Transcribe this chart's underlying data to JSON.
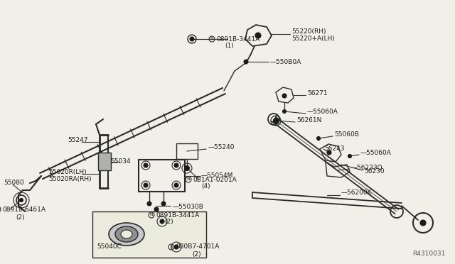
{
  "bg_color": "#f0efe8",
  "line_color": "#2a2a2a",
  "text_color": "#1a1a1a",
  "ref_code": "R4310031",
  "figsize": [
    6.4,
    3.72
  ],
  "dpi": 100,
  "xlim": [
    0,
    640
  ],
  "ylim": [
    0,
    372
  ]
}
